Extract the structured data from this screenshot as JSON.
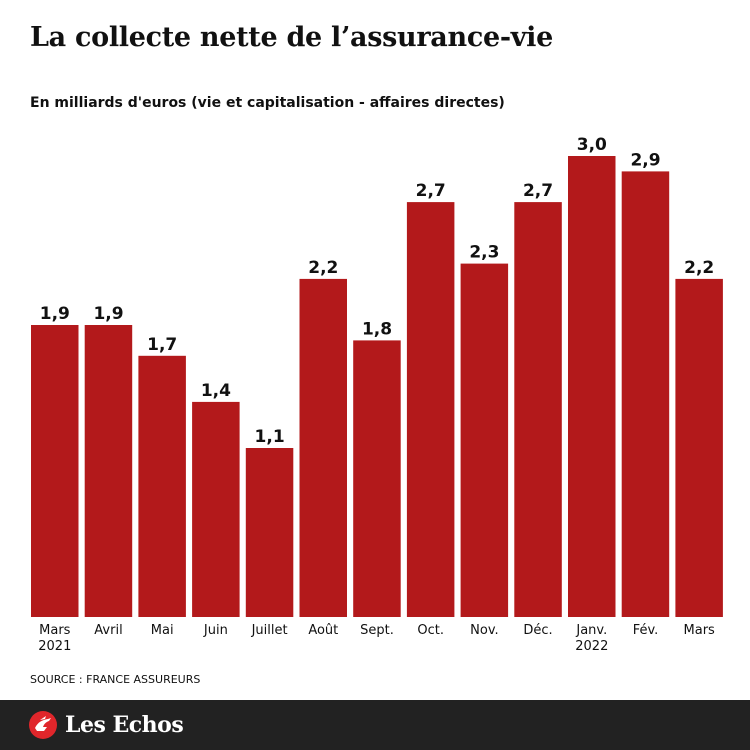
{
  "header": {
    "title": "La collecte nette de l’assurance-vie",
    "subtitle": "En milliards d'euros (vie et capitalisation - affaires directes)"
  },
  "source": "SOURCE : FRANCE ASSUREURS",
  "footer": {
    "brand": "Les Echos"
  },
  "colors": {
    "bar": "#b3191b",
    "footer_bg": "#222222",
    "text": "#111111"
  },
  "chart_data": {
    "type": "bar",
    "categories": [
      [
        "Mars",
        "2021"
      ],
      [
        "Avril"
      ],
      [
        "Mai"
      ],
      [
        "Juin"
      ],
      [
        "Juillet"
      ],
      [
        "Août"
      ],
      [
        "Sept."
      ],
      [
        "Oct."
      ],
      [
        "Nov."
      ],
      [
        "Déc."
      ],
      [
        "Janv.",
        "2022"
      ],
      [
        "Fév."
      ],
      [
        "Mars"
      ]
    ],
    "values": [
      1.9,
      1.9,
      1.7,
      1.4,
      1.1,
      2.2,
      1.8,
      2.7,
      2.3,
      2.7,
      3.0,
      2.9,
      2.2
    ],
    "value_labels": [
      "1,9",
      "1,9",
      "1,7",
      "1,4",
      "1,1",
      "2,2",
      "1,8",
      "2,7",
      "2,3",
      "2,7",
      "3,0",
      "2,9",
      "2,2"
    ],
    "title": "La collecte nette de l’assurance-vie",
    "ylabel": "En milliards d'euros (vie et capitalisation - affaires directes)",
    "ylim": [
      0,
      3.0
    ],
    "grid": false,
    "legend": "none"
  }
}
